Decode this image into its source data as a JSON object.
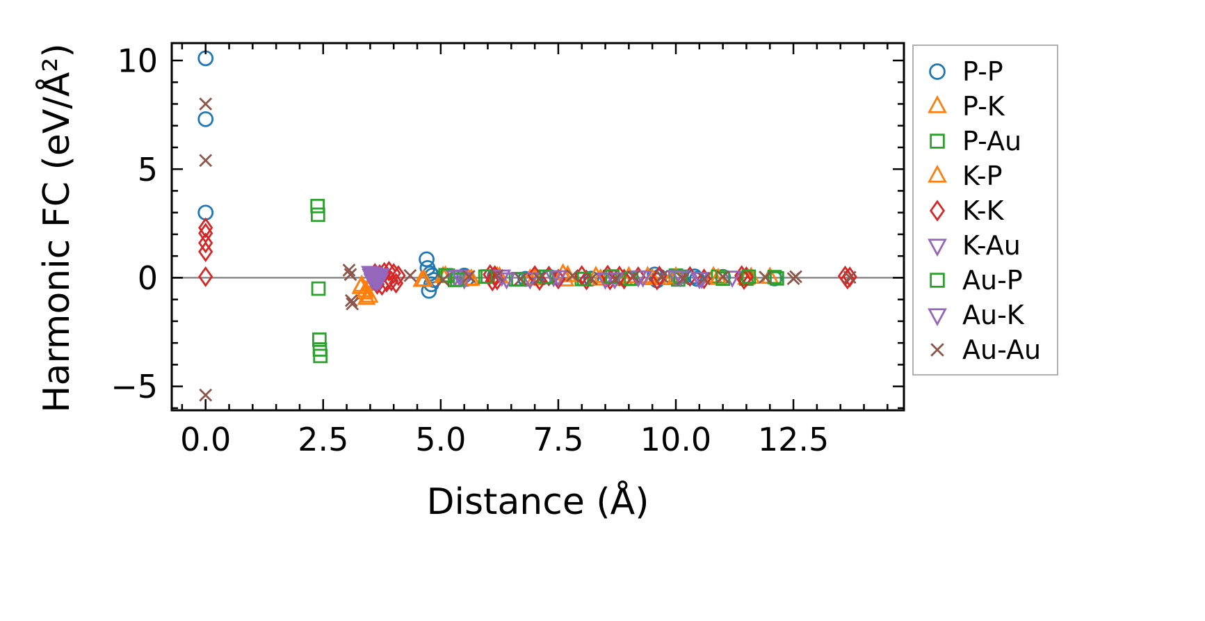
{
  "figure": {
    "background": "#ffffff",
    "frame_color": "#000000",
    "zero_line_color": "#8a8a8a"
  },
  "chart_data": {
    "type": "scatter",
    "title": "",
    "xlabel": "Distance (Å)",
    "ylabel": "Harmonic FC (eV/Å²)",
    "xlim": [
      -0.72,
      14.85
    ],
    "ylim": [
      -6.1,
      10.8
    ],
    "grid": false,
    "legend_position": "right-outside",
    "xticks": {
      "values": [
        0,
        2.5,
        5,
        7.5,
        10,
        12.5
      ],
      "labels": [
        "0.0",
        "2.5",
        "5.0",
        "7.5",
        "10.0",
        "12.5"
      ]
    },
    "yticks": {
      "values": [
        -5,
        0,
        5,
        10
      ],
      "labels": [
        "−5",
        "0",
        "5",
        "10"
      ]
    },
    "x_minor_step": 0.5,
    "y_minor_step": 1,
    "zero_line_y": 0,
    "series": [
      {
        "name": "P-P",
        "marker": "circle",
        "color": "#1f77b4",
        "points": [
          [
            0,
            10.1
          ],
          [
            0,
            7.3
          ],
          [
            0,
            3.0
          ],
          [
            4.7,
            0.85
          ],
          [
            4.72,
            0.45
          ],
          [
            4.75,
            -0.6
          ],
          [
            4.78,
            0.2
          ],
          [
            4.8,
            -0.3
          ],
          [
            4.82,
            0.1
          ],
          [
            4.85,
            -0.1
          ],
          [
            5.5,
            0.1
          ],
          [
            5.55,
            -0.05
          ],
          [
            6.15,
            0.08
          ],
          [
            6.8,
            -0.05
          ],
          [
            7.3,
            0.05
          ],
          [
            8.2,
            -0.04
          ],
          [
            9.55,
            0.15
          ],
          [
            9.6,
            -0.12
          ],
          [
            9.65,
            0.05
          ],
          [
            10.4,
            0.06
          ],
          [
            10.45,
            -0.05
          ],
          [
            11.0,
            0.04
          ],
          [
            12.1,
            -0.03
          ]
        ]
      },
      {
        "name": "P-K",
        "marker": "triangle-up",
        "color": "#ff7f0e",
        "points": [
          [
            3.3,
            -0.45
          ],
          [
            3.38,
            -0.7
          ],
          [
            3.42,
            -0.95
          ],
          [
            3.5,
            -0.3
          ],
          [
            3.55,
            -0.15
          ],
          [
            4.6,
            -0.12
          ],
          [
            5.05,
            0.06
          ],
          [
            5.6,
            -0.08
          ],
          [
            6.2,
            0.05
          ],
          [
            6.9,
            -0.06
          ],
          [
            7.6,
            0.18
          ],
          [
            7.65,
            -0.1
          ],
          [
            8.3,
            0.06
          ],
          [
            8.9,
            -0.08
          ],
          [
            9.4,
            0.05
          ],
          [
            9.9,
            -0.04
          ],
          [
            10.8,
            0.05
          ],
          [
            11.5,
            -0.03
          ],
          [
            12.0,
            0.02
          ]
        ]
      },
      {
        "name": "P-Au",
        "marker": "square",
        "color": "#2ca02c",
        "points": [
          [
            2.38,
            3.3
          ],
          [
            2.39,
            2.9
          ],
          [
            2.4,
            -0.5
          ],
          [
            2.42,
            -2.85
          ],
          [
            2.43,
            -3.3
          ],
          [
            2.44,
            -3.6
          ],
          [
            5.1,
            0.12
          ],
          [
            5.3,
            -0.1
          ],
          [
            6.0,
            0.06
          ],
          [
            6.6,
            -0.08
          ],
          [
            7.2,
            0.05
          ],
          [
            8.0,
            -0.06
          ],
          [
            8.6,
            0.04
          ],
          [
            9.0,
            -0.05
          ],
          [
            10.0,
            0.1
          ],
          [
            10.05,
            -0.08
          ],
          [
            10.9,
            0.05
          ],
          [
            11.5,
            -0.04
          ],
          [
            12.1,
            0.03
          ]
        ]
      },
      {
        "name": "K-P",
        "marker": "triangle-up",
        "color": "#ff7f0e",
        "points": [
          [
            3.32,
            -0.35
          ],
          [
            3.4,
            -0.6
          ],
          [
            3.48,
            -0.85
          ],
          [
            3.56,
            -0.2
          ],
          [
            4.65,
            -0.1
          ],
          [
            5.1,
            0.08
          ],
          [
            5.65,
            -0.06
          ],
          [
            6.25,
            0.04
          ],
          [
            7.0,
            -0.05
          ],
          [
            7.7,
            0.1
          ],
          [
            8.4,
            -0.06
          ],
          [
            9.0,
            0.05
          ],
          [
            9.5,
            -0.04
          ],
          [
            10.0,
            0.04
          ],
          [
            10.9,
            -0.03
          ],
          [
            11.6,
            0.02
          ]
        ]
      },
      {
        "name": "K-K",
        "marker": "diamond",
        "color": "#d62728",
        "points": [
          [
            0,
            2.3
          ],
          [
            0,
            2.05
          ],
          [
            0,
            1.6
          ],
          [
            0,
            1.2
          ],
          [
            0,
            0.05
          ],
          [
            3.6,
            0.2
          ],
          [
            3.65,
            -0.3
          ],
          [
            3.7,
            0.15
          ],
          [
            3.75,
            -0.35
          ],
          [
            3.8,
            0.25
          ],
          [
            3.85,
            -0.2
          ],
          [
            3.9,
            0.3
          ],
          [
            3.95,
            -0.15
          ],
          [
            4.0,
            0.2
          ],
          [
            4.05,
            -0.25
          ],
          [
            4.1,
            0.1
          ],
          [
            6.05,
            0.15
          ],
          [
            6.1,
            -0.15
          ],
          [
            6.15,
            0.1
          ],
          [
            6.2,
            -0.1
          ],
          [
            7.0,
            0.1
          ],
          [
            7.1,
            -0.12
          ],
          [
            7.3,
            0.08
          ],
          [
            7.5,
            -0.06
          ],
          [
            8.0,
            0.1
          ],
          [
            8.1,
            -0.1
          ],
          [
            8.55,
            0.12
          ],
          [
            8.6,
            -0.1
          ],
          [
            8.8,
            0.08
          ],
          [
            8.9,
            -0.06
          ],
          [
            9.2,
            0.05
          ],
          [
            9.6,
            -0.1
          ],
          [
            9.65,
            0.08
          ],
          [
            10.3,
            0.06
          ],
          [
            10.6,
            -0.05
          ],
          [
            11.4,
            0.1
          ],
          [
            11.45,
            -0.08
          ],
          [
            11.5,
            0.05
          ],
          [
            13.6,
            0.08
          ],
          [
            13.65,
            -0.06
          ],
          [
            13.7,
            0.04
          ]
        ]
      },
      {
        "name": "K-Au",
        "marker": "triangle-down",
        "color": "#9467bd",
        "points": [
          [
            3.5,
            0.25
          ],
          [
            3.52,
            0.1
          ],
          [
            3.55,
            -0.1
          ],
          [
            3.58,
            0.18
          ],
          [
            3.6,
            -0.05
          ],
          [
            3.62,
            0.08
          ],
          [
            3.65,
            -0.15
          ],
          [
            3.68,
            0.05
          ],
          [
            3.7,
            -0.08
          ],
          [
            3.72,
            0.12
          ],
          [
            5.3,
            0.06
          ],
          [
            5.5,
            -0.05
          ],
          [
            6.3,
            0.08
          ],
          [
            6.9,
            -0.05
          ],
          [
            7.4,
            0.05
          ],
          [
            8.5,
            -0.06
          ],
          [
            9.3,
            0.04
          ],
          [
            10.0,
            0.06
          ],
          [
            10.5,
            -0.04
          ],
          [
            11.2,
            0.03
          ]
        ]
      },
      {
        "name": "Au-P",
        "marker": "square",
        "color": "#2ca02c",
        "points": [
          [
            5.15,
            0.1
          ],
          [
            5.35,
            -0.08
          ],
          [
            5.95,
            0.05
          ],
          [
            6.65,
            -0.06
          ],
          [
            7.25,
            0.04
          ],
          [
            8.05,
            -0.05
          ],
          [
            8.65,
            0.06
          ],
          [
            9.05,
            -0.04
          ],
          [
            10.1,
            0.05
          ],
          [
            11.0,
            -0.04
          ],
          [
            11.55,
            0.05
          ],
          [
            12.15,
            -0.03
          ]
        ]
      },
      {
        "name": "Au-K",
        "marker": "triangle-down",
        "color": "#9467bd",
        "points": [
          [
            3.54,
            0.2
          ],
          [
            3.57,
            0.05
          ],
          [
            3.61,
            -0.12
          ],
          [
            3.64,
            0.1
          ],
          [
            3.67,
            -0.06
          ],
          [
            3.71,
            0.15
          ],
          [
            5.4,
            0.08
          ],
          [
            6.4,
            -0.05
          ],
          [
            7.5,
            0.05
          ],
          [
            8.7,
            -0.05
          ],
          [
            9.2,
            0.04
          ],
          [
            10.1,
            0.05
          ],
          [
            10.55,
            -0.03
          ]
        ]
      },
      {
        "name": "Au-Au",
        "marker": "x",
        "color": "#8c564b",
        "points": [
          [
            0,
            8.0
          ],
          [
            0,
            5.4
          ],
          [
            0,
            -5.4
          ],
          [
            3.05,
            0.35
          ],
          [
            3.08,
            0.15
          ],
          [
            3.1,
            -1.05
          ],
          [
            3.12,
            -1.2
          ],
          [
            4.35,
            0.1
          ],
          [
            5.05,
            -0.1
          ],
          [
            5.6,
            0.06
          ],
          [
            6.2,
            0.1
          ],
          [
            6.7,
            -0.06
          ],
          [
            7.1,
            -0.05
          ],
          [
            7.8,
            0.1
          ],
          [
            8.2,
            -0.05
          ],
          [
            8.7,
            -0.08
          ],
          [
            9.1,
            0.05
          ],
          [
            9.7,
            0.06
          ],
          [
            10.15,
            -0.05
          ],
          [
            10.6,
            -0.05
          ],
          [
            11.0,
            0.05
          ],
          [
            11.9,
            0.03
          ],
          [
            12.5,
            -0.04
          ],
          [
            12.55,
            0.05
          ],
          [
            13.7,
            0.02
          ]
        ]
      }
    ]
  }
}
